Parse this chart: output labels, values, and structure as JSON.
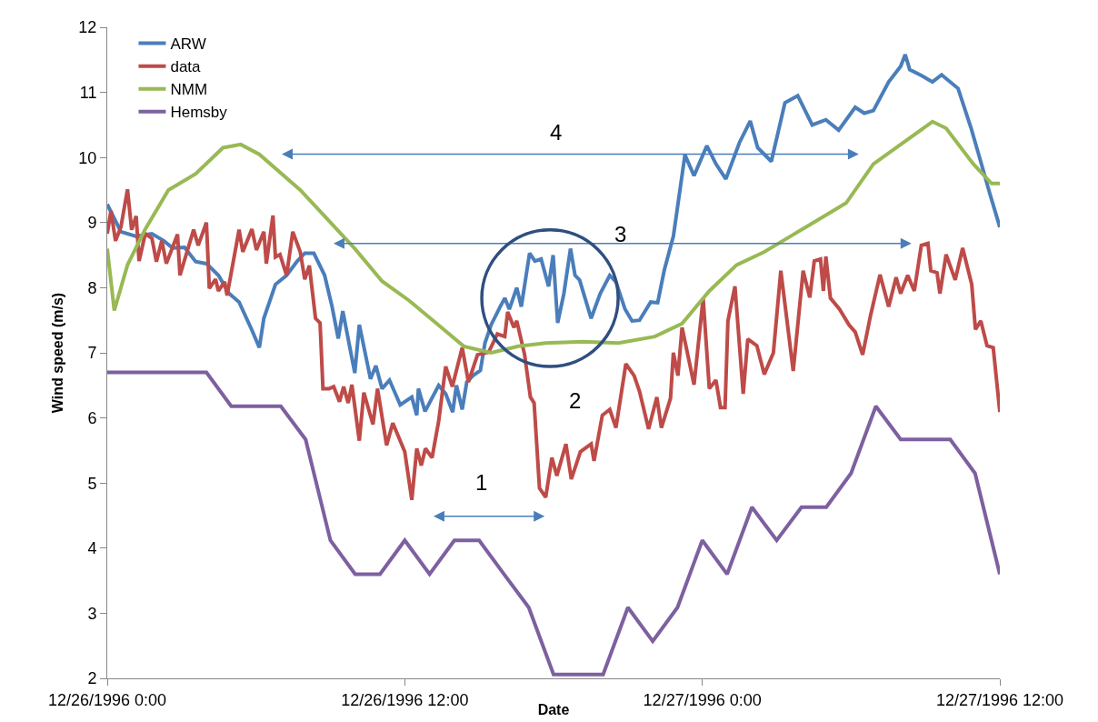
{
  "chart_data": {
    "type": "line",
    "xlabel": "Date",
    "ylabel": "Wind speed (m/s)",
    "xlim": [
      "1996-12-26T00:00",
      "1996-12-27T12:00"
    ],
    "xticks": [
      {
        "value": "1996-12-26T00:00",
        "label": "12/26/1996 0:00"
      },
      {
        "value": "1996-12-26T12:00",
        "label": "12/26/1996 12:00"
      },
      {
        "value": "1996-12-27T00:00",
        "label": "12/27/1996 0:00"
      },
      {
        "value": "1996-12-27T12:00",
        "label": "12/27/1996 12:00"
      }
    ],
    "ylim": [
      2,
      12
    ],
    "yticks": [
      2,
      3,
      4,
      5,
      6,
      7,
      8,
      9,
      10,
      11,
      12
    ],
    "grid": false,
    "legend": "top left",
    "marker": "none",
    "line_style": "solid",
    "series": [
      {
        "name": "ARW",
        "color": "#4a7ebb",
        "x": [
          "1996-12-26T00:00",
          "1996-12-26T00:33",
          "1996-12-26T01:10",
          "1996-12-26T01:48",
          "1996-12-26T02:17",
          "1996-12-26T02:38",
          "1996-12-26T03:07",
          "1996-12-26T03:34",
          "1996-12-26T04:00",
          "1996-12-26T04:29",
          "1996-12-26T04:55",
          "1996-12-26T05:19",
          "1996-12-26T05:50",
          "1996-12-26T06:08",
          "1996-12-26T06:19",
          "1996-12-26T06:47",
          "1996-12-26T07:14",
          "1996-12-26T07:40",
          "1996-12-26T07:58",
          "1996-12-26T08:20",
          "1996-12-26T08:46",
          "1996-12-26T09:04",
          "1996-12-26T09:19",
          "1996-12-26T09:30",
          "1996-12-26T09:59",
          "1996-12-26T10:10",
          "1996-12-26T10:37",
          "1996-12-26T10:50",
          "1996-12-26T11:05",
          "1996-12-26T11:23",
          "1996-12-26T11:49",
          "1996-12-26T12:17",
          "1996-12-26T12:29",
          "1996-12-26T12:33",
          "1996-12-26T12:49",
          "1996-12-26T13:22",
          "1996-12-26T13:39",
          "1996-12-26T13:56",
          "1996-12-26T14:05",
          "1996-12-26T14:19",
          "1996-12-26T14:30",
          "1996-12-26T14:45",
          "1996-12-26T15:03",
          "1996-12-26T15:14",
          "1996-12-26T15:29",
          "1996-12-26T15:51",
          "1996-12-26T16:02",
          "1996-12-26T16:13",
          "1996-12-26T16:31",
          "1996-12-26T16:42",
          "1996-12-26T17:02",
          "1996-12-26T17:15",
          "1996-12-26T17:30",
          "1996-12-26T17:48",
          "1996-12-26T17:59",
          "1996-12-26T18:10",
          "1996-12-26T18:25",
          "1996-12-26T18:41",
          "1996-12-26T18:52",
          "1996-12-26T19:03",
          "1996-12-26T19:31",
          "1996-12-26T19:53",
          "1996-12-26T20:16",
          "1996-12-26T20:31",
          "1996-12-26T20:53",
          "1996-12-26T21:10",
          "1996-12-26T21:28",
          "1996-12-26T21:55",
          "1996-12-26T22:12",
          "1996-12-26T22:28",
          "1996-12-26T22:50",
          "1996-12-26T23:18",
          "1996-12-26T23:40",
          "1996-12-27T00:11",
          "1996-12-27T00:33",
          "1996-12-27T00:57",
          "1996-12-27T01:30",
          "1996-12-27T01:56",
          "1996-12-27T02:14",
          "1996-12-27T02:47",
          "1996-12-27T03:20",
          "1996-12-27T03:51",
          "1996-12-27T04:26",
          "1996-12-27T04:59",
          "1996-12-27T05:30",
          "1996-12-27T06:10",
          "1996-12-27T06:32",
          "1996-12-27T06:54",
          "1996-12-27T07:31",
          "1996-12-27T08:00",
          "1996-12-27T08:11",
          "1996-12-27T08:22",
          "1996-12-27T08:50",
          "1996-12-27T09:17",
          "1996-12-27T09:39",
          "1996-12-27T10:19",
          "1996-12-27T10:50",
          "1996-12-27T11:11",
          "1996-12-27T11:36",
          "1996-12-27T12:00"
        ],
        "values": [
          9.28,
          8.86,
          8.79,
          8.83,
          8.72,
          8.61,
          8.62,
          8.4,
          8.37,
          8.19,
          7.91,
          7.78,
          7.35,
          7.08,
          7.53,
          8.05,
          8.19,
          8.41,
          8.53,
          8.53,
          8.19,
          7.71,
          7.22,
          7.64,
          6.69,
          7.43,
          6.6,
          6.8,
          6.45,
          6.58,
          6.2,
          6.32,
          6.04,
          6.45,
          6.1,
          6.5,
          6.37,
          6.09,
          6.5,
          6.13,
          6.55,
          6.65,
          6.73,
          7.15,
          7.43,
          7.71,
          7.84,
          7.67,
          8.0,
          7.71,
          8.53,
          8.41,
          8.44,
          8.02,
          8.5,
          7.46,
          7.91,
          8.6,
          8.19,
          8.12,
          7.53,
          7.91,
          8.19,
          8.09,
          7.67,
          7.49,
          7.5,
          7.78,
          7.77,
          8.27,
          8.79,
          10.04,
          9.72,
          10.18,
          9.9,
          9.67,
          10.23,
          10.56,
          10.15,
          9.94,
          10.84,
          10.95,
          10.5,
          10.58,
          10.42,
          10.77,
          10.68,
          10.72,
          11.16,
          11.4,
          11.58,
          11.35,
          11.26,
          11.16,
          11.27,
          11.06,
          10.46,
          10.0,
          9.44,
          8.93
        ]
      },
      {
        "name": "data",
        "color": "#be4b48",
        "x": [
          "1996-12-26T00:00",
          "1996-12-26T00:09",
          "1996-12-26T00:20",
          "1996-12-26T00:33",
          "1996-12-26T00:49",
          "1996-12-26T00:59",
          "1996-12-26T01:10",
          "1996-12-26T01:17",
          "1996-12-26T01:32",
          "1996-12-26T01:48",
          "1996-12-26T01:59",
          "1996-12-26T02:12",
          "1996-12-26T02:23",
          "1996-12-26T02:50",
          "1996-12-26T02:56",
          "1996-12-26T03:29",
          "1996-12-26T03:40",
          "1996-12-26T04:00",
          "1996-12-26T04:07",
          "1996-12-26T04:22",
          "1996-12-26T04:29",
          "1996-12-26T04:44",
          "1996-12-26T04:50",
          "1996-12-26T05:19",
          "1996-12-26T05:28",
          "1996-12-26T05:50",
          "1996-12-26T06:01",
          "1996-12-26T06:19",
          "1996-12-26T06:25",
          "1996-12-26T06:41",
          "1996-12-26T06:47",
          "1996-12-26T06:58",
          "1996-12-26T07:14",
          "1996-12-26T07:29",
          "1996-12-26T07:47",
          "1996-12-26T07:58",
          "1996-12-26T08:09",
          "1996-12-26T08:24",
          "1996-12-26T08:35",
          "1996-12-26T08:42",
          "1996-12-26T08:57",
          "1996-12-26T09:08",
          "1996-12-26T09:22",
          "1996-12-26T09:32",
          "1996-12-26T09:43",
          "1996-12-26T09:52",
          "1996-12-26T10:10",
          "1996-12-26T10:21",
          "1996-12-26T10:43",
          "1996-12-26T10:54",
          "1996-12-26T11:16",
          "1996-12-26T11:31",
          "1996-12-26T12:00",
          "1996-12-26T12:17",
          "1996-12-26T12:29",
          "1996-12-26T12:40",
          "1996-12-26T12:50",
          "1996-12-26T13:06",
          "1996-12-26T13:22",
          "1996-12-26T13:39",
          "1996-12-26T13:55",
          "1996-12-26T14:19",
          "1996-12-26T14:34",
          "1996-12-26T14:56",
          "1996-12-26T15:23",
          "1996-12-26T15:44",
          "1996-12-26T16:02",
          "1996-12-26T16:09",
          "1996-12-26T16:24",
          "1996-12-26T16:31",
          "1996-12-26T16:50",
          "1996-12-26T17:04",
          "1996-12-26T17:13",
          "1996-12-26T17:26",
          "1996-12-26T17:41",
          "1996-12-26T17:56",
          "1996-12-26T18:08",
          "1996-12-26T18:30",
          "1996-12-26T18:43",
          "1996-12-26T19:05",
          "1996-12-26T19:31",
          "1996-12-26T19:38",
          "1996-12-26T19:58",
          "1996-12-26T20:16",
          "1996-12-26T20:31",
          "1996-12-26T20:55",
          "1996-12-26T21:15",
          "1996-12-26T21:28",
          "1996-12-26T21:50",
          "1996-12-26T22:10",
          "1996-12-26T22:21",
          "1996-12-26T22:43",
          "1996-12-26T22:50",
          "1996-12-26T23:01",
          "1996-12-26T23:11",
          "1996-12-26T23:40",
          "1996-12-27T00:02",
          "1996-12-27T00:17",
          "1996-12-27T00:33",
          "1996-12-27T00:44",
          "1996-12-27T00:55",
          "1996-12-27T01:02",
          "1996-12-27T01:19",
          "1996-12-27T01:39",
          "1996-12-27T01:50",
          "1996-12-27T02:12",
          "1996-12-27T02:30",
          "1996-12-27T02:52",
          "1996-12-27T03:10",
          "1996-12-27T03:40",
          "1996-12-27T04:04",
          "1996-12-27T04:20",
          "1996-12-27T04:31",
          "1996-12-27T04:46",
          "1996-12-27T04:53",
          "1996-12-27T04:59",
          "1996-12-27T05:10",
          "1996-12-27T05:32",
          "1996-12-27T05:55",
          "1996-12-27T06:10",
          "1996-12-27T06:28",
          "1996-12-27T06:47",
          "1996-12-27T07:10",
          "1996-12-27T07:31",
          "1996-12-27T07:49",
          "1996-12-27T08:00",
          "1996-12-27T08:17",
          "1996-12-27T08:33",
          "1996-12-27T08:50",
          "1996-12-27T09:06",
          "1996-12-27T09:13",
          "1996-12-27T09:28",
          "1996-12-27T09:35",
          "1996-12-27T09:50",
          "1996-12-27T10:12",
          "1996-12-27T10:30",
          "1996-12-27T10:52",
          "1996-12-27T11:01",
          "1996-12-27T11:14",
          "1996-12-27T11:29",
          "1996-12-27T11:44",
          "1996-12-27T12:00"
        ],
        "values": [
          8.83,
          9.18,
          8.72,
          8.93,
          9.51,
          8.89,
          9.1,
          8.41,
          8.83,
          8.76,
          8.4,
          8.72,
          8.37,
          8.82,
          8.19,
          8.89,
          8.65,
          9.0,
          7.99,
          8.13,
          7.95,
          8.09,
          7.88,
          8.89,
          8.55,
          8.9,
          8.58,
          8.86,
          8.37,
          9.11,
          8.47,
          8.51,
          8.19,
          8.86,
          8.55,
          8.13,
          8.34,
          7.53,
          7.46,
          6.45,
          6.45,
          6.48,
          6.25,
          6.48,
          6.23,
          6.51,
          5.65,
          6.39,
          5.9,
          6.45,
          5.58,
          5.92,
          5.48,
          4.74,
          5.53,
          5.27,
          5.53,
          5.39,
          5.95,
          6.79,
          6.48,
          7.08,
          6.55,
          6.97,
          7.01,
          7.29,
          7.25,
          7.63,
          7.39,
          7.49,
          6.97,
          6.32,
          6.23,
          4.92,
          4.78,
          5.39,
          5.11,
          5.6,
          5.06,
          5.48,
          5.6,
          5.34,
          6.04,
          6.13,
          5.85,
          6.83,
          6.65,
          6.41,
          5.83,
          6.32,
          5.85,
          6.3,
          7.0,
          6.65,
          7.39,
          6.51,
          7.84,
          6.45,
          6.58,
          6.16,
          6.16,
          7.49,
          8.02,
          6.37,
          7.21,
          7.11,
          6.67,
          7.0,
          8.26,
          6.72,
          8.26,
          7.85,
          8.41,
          8.44,
          7.95,
          8.48,
          7.84,
          7.67,
          7.43,
          7.32,
          6.97,
          7.57,
          8.2,
          7.71,
          8.16,
          7.91,
          8.19,
          7.95,
          8.65,
          8.68,
          8.26,
          8.23,
          7.91,
          8.51,
          8.12,
          8.61,
          8.05,
          7.36,
          7.49,
          7.11,
          7.08,
          6.09
        ]
      },
      {
        "name": "NMM",
        "color": "#98b954",
        "x": [
          "1996-12-26T00:00",
          "1996-12-26T00:17",
          "1996-12-26T00:49",
          "1996-12-26T01:32",
          "1996-12-26T02:28",
          "1996-12-26T03:34",
          "1996-12-26T04:40",
          "1996-12-26T05:23",
          "1996-12-26T06:08",
          "1996-12-26T07:47",
          "1996-12-26T08:53",
          "1996-12-26T09:59",
          "1996-12-26T11:05",
          "1996-12-26T12:11",
          "1996-12-26T13:17",
          "1996-12-26T14:23",
          "1996-12-26T15:29",
          "1996-12-26T16:35",
          "1996-12-26T17:41",
          "1996-12-26T19:10",
          "1996-12-26T20:37",
          "1996-12-26T22:05",
          "1996-12-26T23:11",
          "1996-12-27T00:17",
          "1996-12-27T01:23",
          "1996-12-27T02:30",
          "1996-12-27T03:36",
          "1996-12-27T04:42",
          "1996-12-27T05:48",
          "1996-12-27T06:54",
          "1996-12-27T08:00",
          "1996-12-27T09:17",
          "1996-12-27T09:50",
          "1996-12-27T10:56",
          "1996-12-27T11:40",
          "1996-12-27T12:00"
        ],
        "values": [
          8.6,
          7.65,
          8.35,
          8.9,
          9.5,
          9.75,
          10.15,
          10.2,
          10.05,
          9.5,
          9.05,
          8.6,
          8.1,
          7.8,
          7.45,
          7.1,
          7.0,
          7.1,
          7.15,
          7.17,
          7.15,
          7.25,
          7.45,
          7.95,
          8.35,
          8.55,
          8.8,
          9.05,
          9.3,
          9.9,
          10.2,
          10.55,
          10.45,
          9.9,
          9.6,
          9.6
        ]
      },
      {
        "name": "Hemsby",
        "color": "#7d60a0",
        "x": [
          "1996-12-26T00:00",
          "1996-12-26T04:00",
          "1996-12-26T05:00",
          "1996-12-26T07:00",
          "1996-12-26T08:00",
          "1996-12-26T09:00",
          "1996-12-26T10:00",
          "1996-12-26T11:00",
          "1996-12-26T12:00",
          "1996-12-26T13:00",
          "1996-12-26T14:00",
          "1996-12-26T15:00",
          "1996-12-26T16:00",
          "1996-12-26T17:00",
          "1996-12-26T18:00",
          "1996-12-26T19:00",
          "1996-12-26T20:00",
          "1996-12-26T21:00",
          "1996-12-26T22:00",
          "1996-12-26T23:00",
          "1996-12-27T00:00",
          "1996-12-27T01:00",
          "1996-12-27T02:00",
          "1996-12-27T03:00",
          "1996-12-27T04:00",
          "1996-12-27T05:00",
          "1996-12-27T06:00",
          "1996-12-27T07:00",
          "1996-12-27T08:00",
          "1996-12-27T09:00",
          "1996-12-27T10:00",
          "1996-12-27T11:00",
          "1996-12-27T12:00"
        ],
        "values": [
          6.7,
          6.7,
          6.18,
          6.18,
          5.67,
          4.12,
          3.6,
          3.6,
          4.12,
          3.6,
          4.12,
          4.12,
          3.6,
          3.09,
          2.06,
          2.06,
          2.06,
          3.09,
          2.57,
          3.09,
          4.12,
          3.6,
          4.63,
          4.12,
          4.63,
          4.63,
          5.15,
          6.18,
          5.67,
          5.67,
          5.67,
          5.15,
          3.6
        ]
      }
    ],
    "annotations": [
      "1",
      "2",
      "3",
      "4"
    ]
  }
}
